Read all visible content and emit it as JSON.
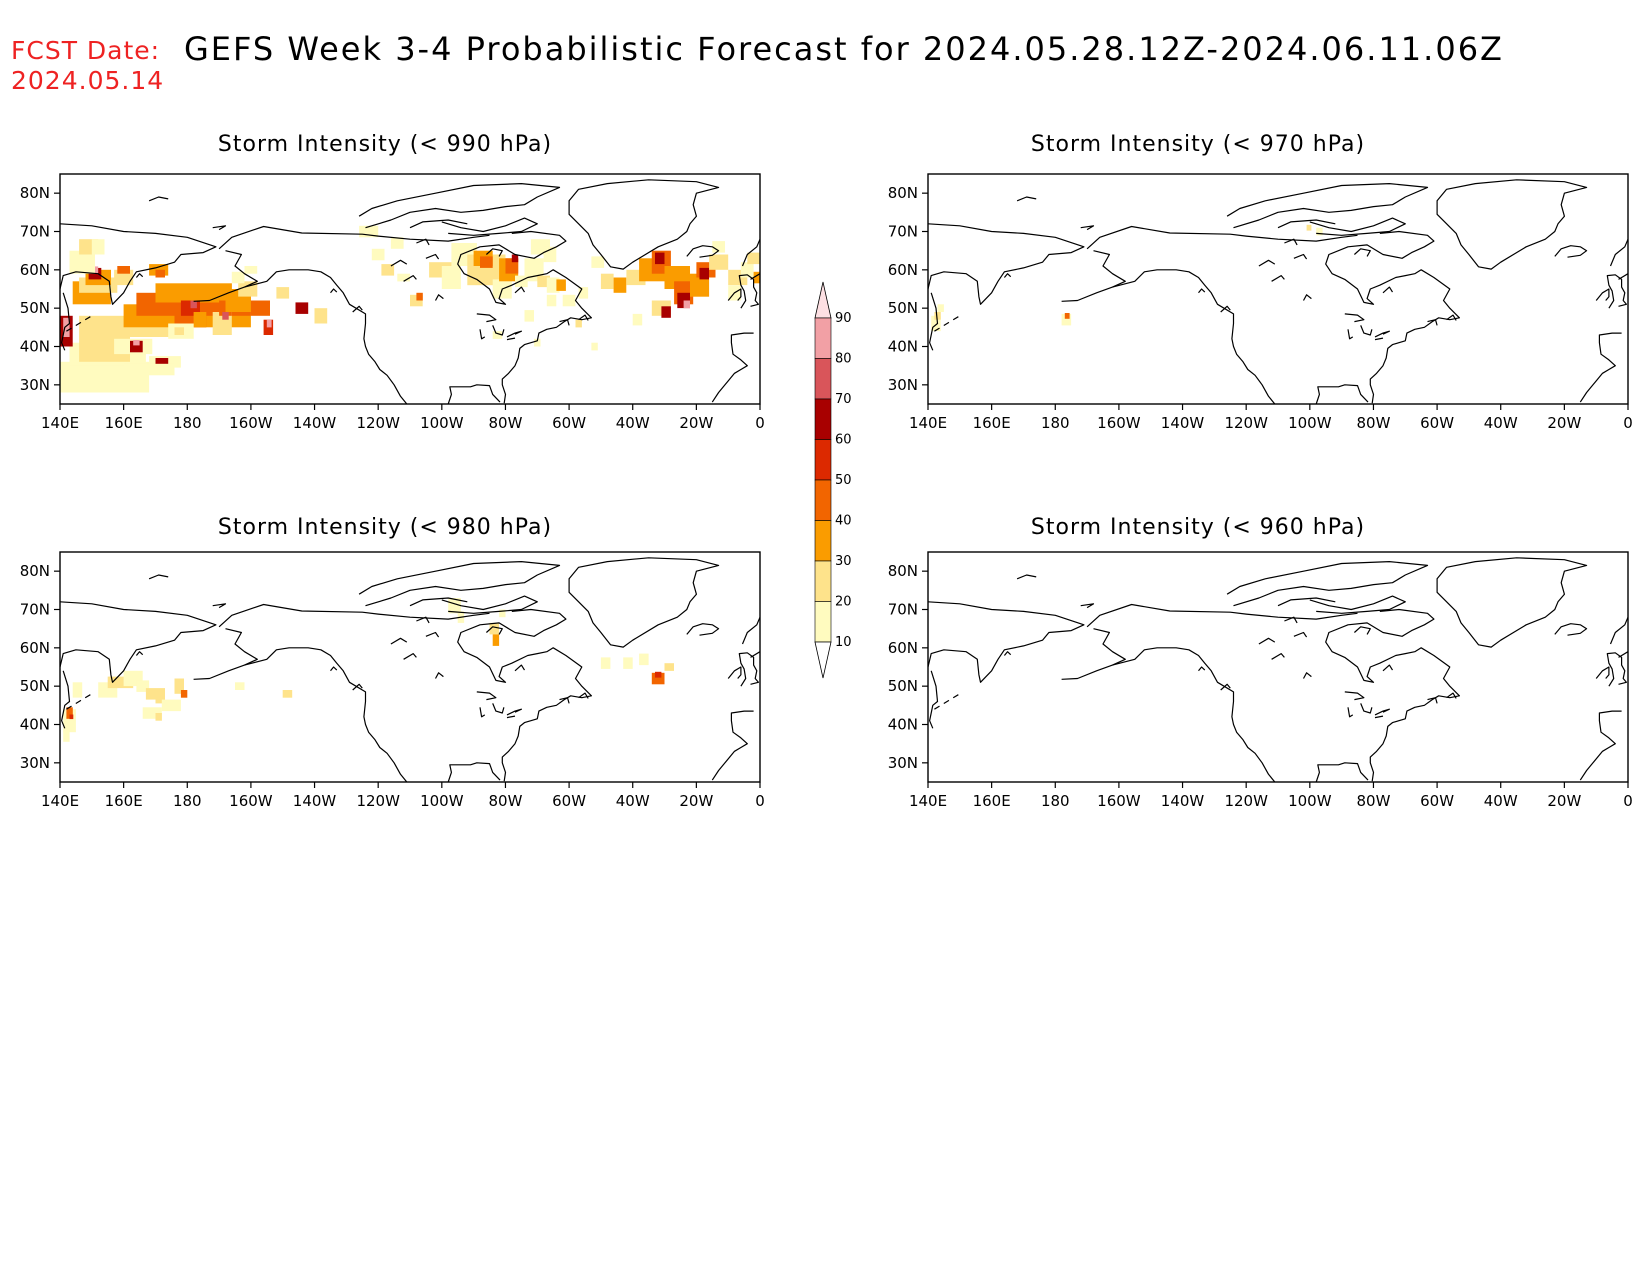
{
  "header": {
    "fcst_label": "FCST Date:",
    "fcst_date": "2024.05.14",
    "title": "GEFS Week 3-4 Probabilistic Forecast for 2024.05.28.12Z-2024.06.11.06Z"
  },
  "colors": {
    "fcst": "#ee2222",
    "levels": [
      "#fffbbf",
      "#fee38b",
      "#fa9c00",
      "#f26500",
      "#dc2900",
      "#a80000",
      "#d9555a",
      "#f2a0a5",
      "#fde0e3"
    ]
  },
  "colorbar": {
    "labels": [
      "90",
      "80",
      "70",
      "60",
      "50",
      "40",
      "30",
      "20",
      "10"
    ]
  },
  "panels": [
    {
      "id": "p990",
      "title": "Storm Intensity (< 990 hPa)"
    },
    {
      "id": "p970",
      "title": "Storm Intensity (< 970 hPa)"
    },
    {
      "id": "p980",
      "title": "Storm Intensity (< 980 hPa)"
    },
    {
      "id": "p960",
      "title": "Storm Intensity (< 960 hPa)"
    }
  ],
  "axes": {
    "lon_labels": [
      "140E",
      "160E",
      "180",
      "160W",
      "140W",
      "120W",
      "100W",
      "80W",
      "60W",
      "40W",
      "20W",
      "0"
    ],
    "lat_labels": [
      "80N",
      "70N",
      "60N",
      "50N",
      "40N",
      "30N"
    ]
  }
}
